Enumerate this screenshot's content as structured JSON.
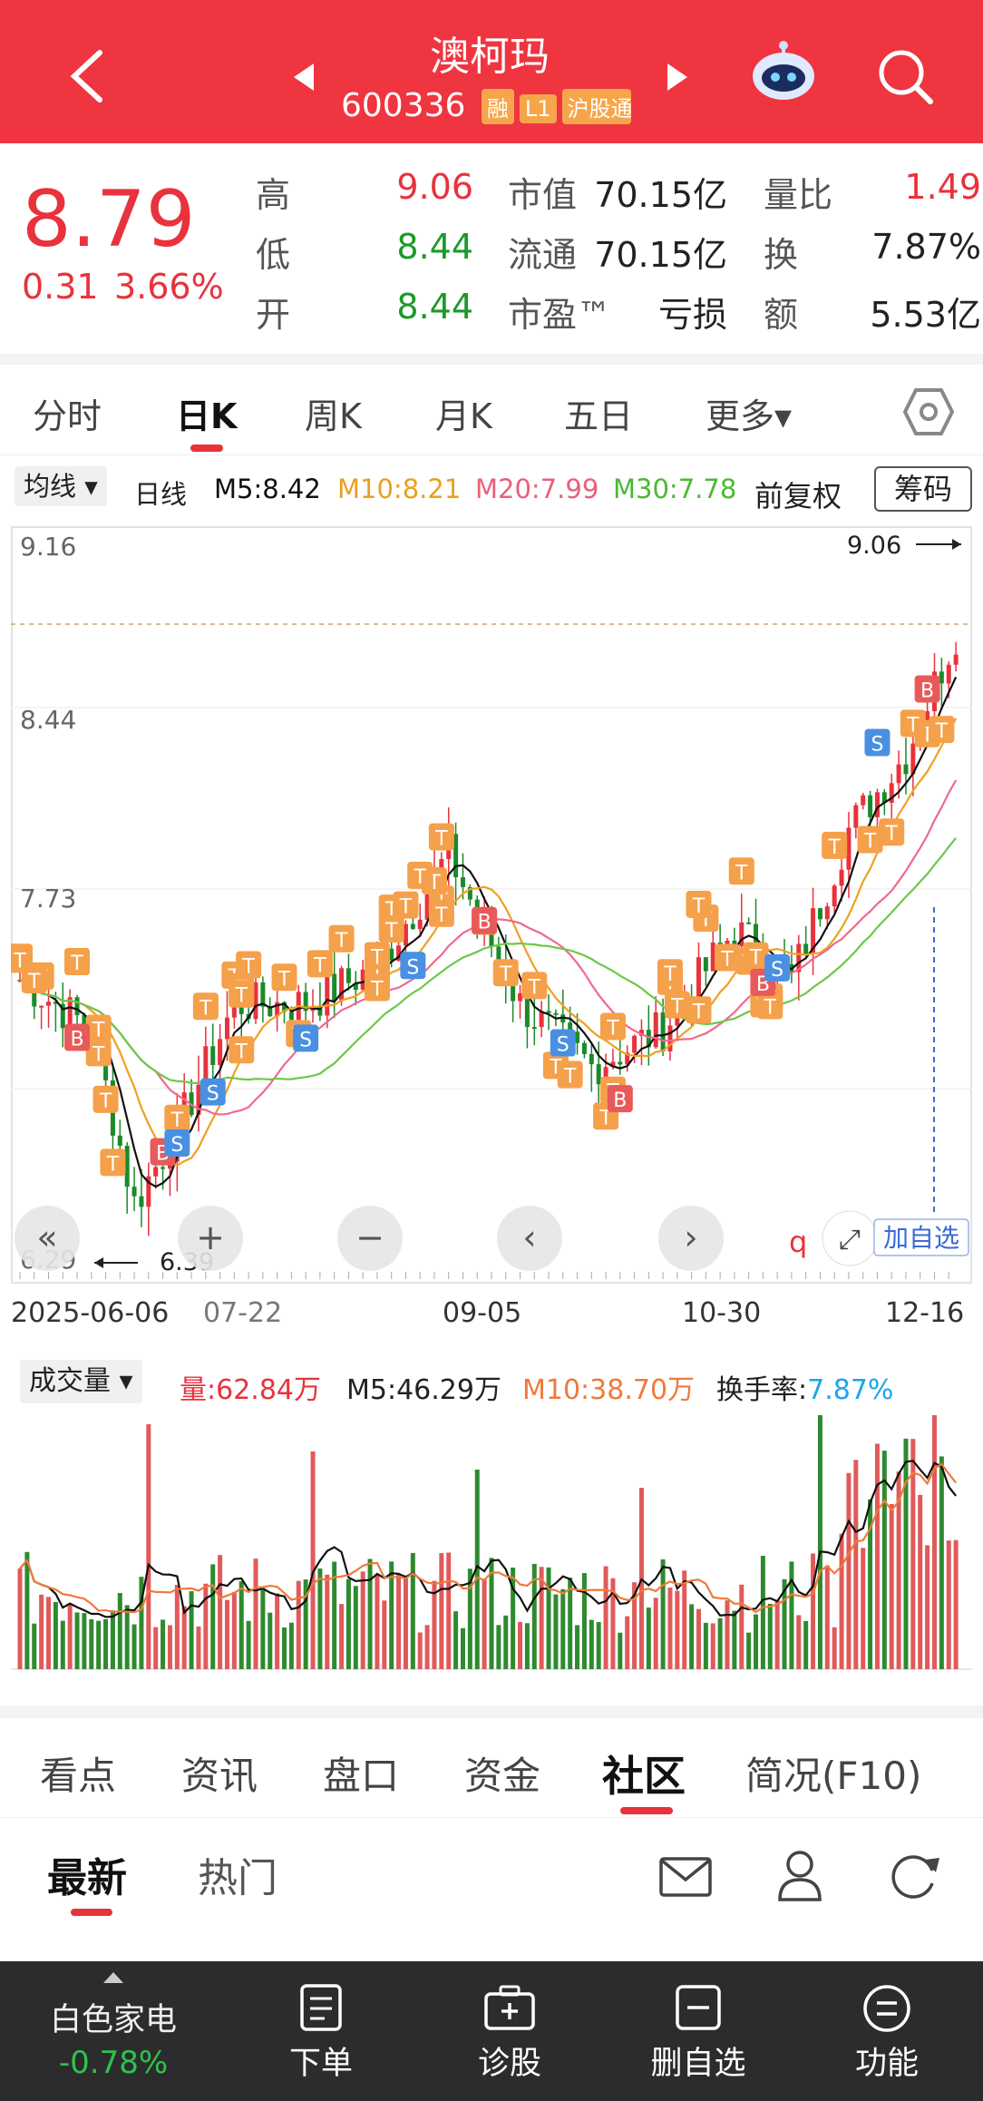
{
  "header": {
    "title": "澳柯玛",
    "code": "600336",
    "tags": [
      "融",
      "L1",
      "沪股通"
    ]
  },
  "quote": {
    "price": "8.79",
    "change": "0.31",
    "change_pct": "3.66%",
    "rows": [
      {
        "l1": "高",
        "v1": "9.06",
        "l2": "市值",
        "v2": "70.15亿",
        "l3": "量比",
        "v3": "1.49"
      },
      {
        "l1": "低",
        "v1": "8.44",
        "l2": "流通",
        "v2": "70.15亿",
        "l3": "换",
        "v3": "7.87%"
      },
      {
        "l1": "开",
        "v1": "8.44",
        "l2": "市盈™",
        "v2": "亏损",
        "l3": "额",
        "v3": "5.53亿"
      }
    ]
  },
  "tabs": [
    "分时",
    "日K",
    "周K",
    "月K",
    "五日",
    "更多▾"
  ],
  "ma": {
    "dropdown": "均线 ▾",
    "period": "日线",
    "m5": "M5:8.42",
    "m10": "M10:8.21",
    "m20": "M20:7.99",
    "m30": "M30:7.78",
    "adj": "前复权",
    "chips": "筹码"
  },
  "kchart": {
    "y_labels": [
      "9.16",
      "8.44",
      "7.73",
      "6.29"
    ],
    "high_mark": "9.06",
    "low_mark": "6.39",
    "add_watch": "加自选",
    "colors": {
      "up": "#e8323c",
      "down": "#1a8a2a",
      "m5": "#111111",
      "m10": "#f0a020",
      "m20": "#f06a8a",
      "m30": "#6cc84a"
    }
  },
  "dates": [
    "2025-06-06",
    "07-22",
    "09-05",
    "10-30",
    "12-16"
  ],
  "vol": {
    "dropdown": "成交量 ▾",
    "qty": "量:62.84万",
    "m5": "M5:46.29万",
    "m10": "M10:38.70万",
    "turnover_label": "换手率:",
    "turnover": "7.87%"
  },
  "subtabs": [
    "看点",
    "资讯",
    "盘口",
    "资金",
    "社区",
    "简况(F10)"
  ],
  "feed_tabs": [
    "最新",
    "热门"
  ],
  "bottom": {
    "sector": "白色家电",
    "sector_change": "-0.78%",
    "items": [
      "下单",
      "诊股",
      "删自选",
      "功能"
    ]
  }
}
